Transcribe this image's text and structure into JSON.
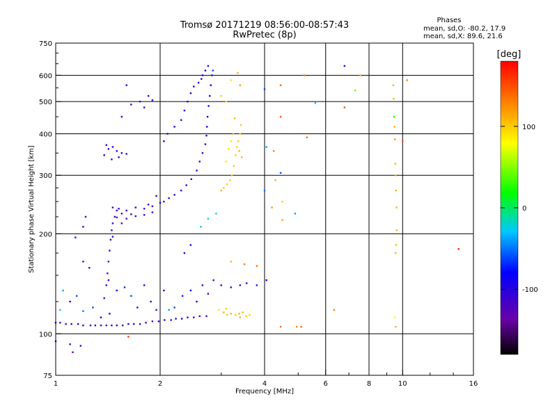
{
  "chart_data": {
    "type": "scatter",
    "title": "Tromsø 20171219 08:56:00-08:57:43",
    "subtitle": "RwPretec (8p)",
    "xlabel": "Frequency [MHz]",
    "ylabel": "Stationary phase Virtual Height [km]",
    "x_scale": "log",
    "y_scale": "log",
    "xlim": [
      1,
      16
    ],
    "ylim": [
      75,
      750
    ],
    "x_ticks": [
      1,
      2,
      4,
      6,
      8,
      10,
      16
    ],
    "x_tick_labels": [
      "1",
      "2",
      "4",
      "6",
      "8",
      "10",
      "16"
    ],
    "y_ticks": [
      75,
      100,
      200,
      300,
      400,
      500,
      600,
      750
    ],
    "y_tick_labels": [
      "75",
      "100",
      "200",
      "300",
      "400",
      "500",
      "600",
      "750"
    ],
    "grid": true,
    "legend": {
      "title": "Phases",
      "lines": [
        "mean, sd,O: -80.2, 17.9",
        "mean, sd,X:  89.6, 21.6"
      ],
      "position": "top-right"
    },
    "colorbar": {
      "label": "[deg]",
      "min": -180,
      "max": 180,
      "ticks": [
        100,
        0,
        -100
      ],
      "tick_labels": [
        "100",
        "0",
        "-100"
      ],
      "colors": [
        "#000000",
        "#6a00a8",
        "#0000ff",
        "#00c8ff",
        "#00ff00",
        "#ffff00",
        "#ff8000",
        "#ff0000"
      ]
    },
    "series": [
      {
        "points": [
          [
            1.0,
            108,
            -110
          ],
          [
            1.03,
            108,
            -110
          ],
          [
            1.07,
            107,
            -110
          ],
          [
            1.11,
            107,
            -110
          ],
          [
            1.16,
            107,
            -105
          ],
          [
            1.2,
            106,
            -110
          ],
          [
            1.26,
            106,
            -110
          ],
          [
            1.3,
            106,
            -105
          ],
          [
            1.35,
            106,
            -110
          ],
          [
            1.4,
            106,
            -110
          ],
          [
            1.45,
            106,
            -105
          ],
          [
            1.5,
            106,
            -110
          ],
          [
            1.56,
            106,
            -110
          ],
          [
            1.62,
            107,
            -105
          ],
          [
            1.68,
            107,
            -110
          ],
          [
            1.75,
            107,
            -110
          ],
          [
            1.82,
            108,
            -110
          ],
          [
            1.9,
            109,
            -110
          ],
          [
            1.98,
            109,
            -110
          ],
          [
            2.06,
            110,
            -100
          ],
          [
            2.15,
            110,
            -110
          ],
          [
            2.22,
            111,
            -110
          ],
          [
            2.31,
            111,
            -100
          ],
          [
            2.4,
            112,
            -110
          ],
          [
            2.5,
            112,
            -110
          ],
          [
            2.6,
            113,
            -110
          ],
          [
            2.72,
            113,
            -110
          ],
          [
            1.03,
            118,
            -30
          ],
          [
            1.05,
            135,
            -40
          ],
          [
            1.1,
            125,
            -80
          ],
          [
            1.15,
            130,
            -60
          ],
          [
            1.2,
            117,
            -50
          ],
          [
            1.28,
            120,
            -60
          ],
          [
            1.35,
            112,
            -90
          ],
          [
            1.43,
            115,
            -80
          ],
          [
            1.5,
            135,
            -90
          ],
          [
            1.58,
            138,
            -70
          ],
          [
            1.65,
            130,
            -60
          ],
          [
            1.72,
            120,
            -100
          ],
          [
            1.8,
            140,
            -100
          ],
          [
            1.88,
            125,
            -95
          ],
          [
            1.95,
            118,
            -110
          ],
          [
            2.05,
            135,
            -90
          ],
          [
            2.12,
            118,
            -40
          ],
          [
            2.2,
            120,
            -60
          ],
          [
            2.32,
            130,
            -70
          ],
          [
            2.45,
            135,
            -80
          ],
          [
            2.55,
            125,
            -90
          ],
          [
            2.65,
            140,
            -100
          ],
          [
            2.75,
            132,
            -90
          ],
          [
            2.85,
            145,
            -100
          ],
          [
            3.0,
            140,
            -110
          ],
          [
            3.2,
            138,
            -110
          ],
          [
            3.4,
            140,
            -110
          ],
          [
            3.55,
            142,
            -100
          ],
          [
            3.8,
            140,
            -110
          ],
          [
            4.05,
            145,
            -80
          ],
          [
            3.05,
            116,
            110
          ],
          [
            3.12,
            114,
            100
          ],
          [
            3.2,
            115,
            110
          ],
          [
            3.3,
            114,
            100
          ],
          [
            3.38,
            115,
            110
          ],
          [
            3.46,
            116,
            110
          ],
          [
            3.54,
            113,
            100
          ],
          [
            3.62,
            114,
            100
          ],
          [
            2.95,
            118,
            90
          ],
          [
            3.1,
            119,
            100
          ],
          [
            3.4,
            112,
            110
          ],
          [
            1.38,
            128,
            -110
          ],
          [
            1.4,
            140,
            -110
          ],
          [
            1.41,
            152,
            -110
          ],
          [
            1.42,
            165,
            -120
          ],
          [
            1.43,
            178,
            -110
          ],
          [
            1.44,
            192,
            -110
          ],
          [
            1.45,
            205,
            -110
          ],
          [
            1.46,
            215,
            -110
          ],
          [
            1.48,
            225,
            -110
          ],
          [
            1.5,
            235,
            -110
          ],
          [
            1.46,
            196,
            -110
          ],
          [
            1.42,
            145,
            -110
          ],
          [
            1.46,
            240,
            -110
          ],
          [
            1.52,
            238,
            -110
          ],
          [
            1.6,
            235,
            -110
          ],
          [
            1.7,
            240,
            -110
          ],
          [
            1.8,
            238,
            -110
          ],
          [
            1.9,
            242,
            -110
          ],
          [
            2.0,
            248,
            -90
          ],
          [
            1.5,
            224,
            -120
          ],
          [
            1.6,
            222,
            -120
          ],
          [
            1.7,
            226,
            -110
          ],
          [
            1.8,
            228,
            -110
          ],
          [
            1.9,
            232,
            -110
          ],
          [
            1.55,
            230,
            -110
          ],
          [
            1.65,
            229,
            -110
          ],
          [
            1.38,
            345,
            -100
          ],
          [
            1.42,
            360,
            -100
          ],
          [
            1.46,
            365,
            -100
          ],
          [
            1.5,
            355,
            -100
          ],
          [
            1.55,
            350,
            -100
          ],
          [
            1.6,
            348,
            -100
          ],
          [
            1.45,
            335,
            -100
          ],
          [
            1.52,
            340,
            -100
          ],
          [
            1.4,
            370,
            -100
          ],
          [
            2.05,
            250,
            -110
          ],
          [
            2.12,
            256,
            -110
          ],
          [
            2.2,
            262,
            -110
          ],
          [
            2.3,
            270,
            -100
          ],
          [
            2.38,
            280,
            -100
          ],
          [
            2.46,
            292,
            -100
          ],
          [
            2.55,
            310,
            -100
          ],
          [
            2.6,
            330,
            -100
          ],
          [
            2.65,
            350,
            -100
          ],
          [
            2.7,
            372,
            -100
          ],
          [
            2.72,
            395,
            -100
          ],
          [
            2.73,
            420,
            -90
          ],
          [
            2.74,
            450,
            -90
          ],
          [
            2.76,
            485,
            -90
          ],
          [
            2.78,
            520,
            -90
          ],
          [
            2.8,
            560,
            -90
          ],
          [
            2.82,
            600,
            -90
          ],
          [
            2.75,
            640,
            -90
          ],
          [
            2.7,
            620,
            -80
          ],
          [
            2.65,
            600,
            -90
          ],
          [
            2.84,
            620,
            -60
          ],
          [
            2.1,
            400,
            -90
          ],
          [
            2.2,
            420,
            -100
          ],
          [
            2.3,
            440,
            -100
          ],
          [
            2.35,
            470,
            -90
          ],
          [
            2.4,
            500,
            -90
          ],
          [
            2.45,
            530,
            -90
          ],
          [
            2.5,
            555,
            -90
          ],
          [
            2.58,
            570,
            -90
          ],
          [
            2.63,
            585,
            -100
          ],
          [
            2.05,
            380,
            -90
          ],
          [
            1.65,
            490,
            -110
          ],
          [
            1.75,
            500,
            -110
          ],
          [
            1.8,
            480,
            -110
          ],
          [
            1.85,
            520,
            -110
          ],
          [
            1.55,
            450,
            -110
          ],
          [
            1.6,
            560,
            -110
          ],
          [
            1.9,
            505,
            -110
          ],
          [
            3.0,
            270,
            110
          ],
          [
            3.05,
            275,
            100
          ],
          [
            3.12,
            282,
            100
          ],
          [
            3.18,
            290,
            100
          ],
          [
            3.22,
            300,
            100
          ],
          [
            3.26,
            320,
            100
          ],
          [
            3.3,
            345,
            100
          ],
          [
            3.33,
            365,
            100
          ],
          [
            3.36,
            380,
            100
          ],
          [
            3.4,
            400,
            100
          ],
          [
            3.42,
            425,
            100
          ],
          [
            3.38,
            355,
            110
          ],
          [
            3.44,
            340,
            110
          ],
          [
            3.1,
            330,
            90
          ],
          [
            3.15,
            360,
            90
          ],
          [
            3.2,
            380,
            90
          ],
          [
            3.25,
            400,
            110
          ],
          [
            3.28,
            445,
            110
          ],
          [
            3.35,
            610,
            110
          ],
          [
            3.4,
            560,
            120
          ],
          [
            3.2,
            580,
            90
          ],
          [
            3.1,
            500,
            100
          ],
          [
            3.0,
            520,
            100
          ],
          [
            2.9,
            230,
            -20
          ],
          [
            2.75,
            222,
            -20
          ],
          [
            2.62,
            210,
            -30
          ],
          [
            2.45,
            185,
            -100
          ],
          [
            2.35,
            175,
            -100
          ],
          [
            3.2,
            165,
            110
          ],
          [
            3.5,
            162,
            130
          ],
          [
            3.8,
            160,
            140
          ],
          [
            4.45,
            560,
            140
          ],
          [
            4.45,
            450,
            150
          ],
          [
            4.45,
            305,
            -60
          ],
          [
            4.45,
            105,
            140
          ],
          [
            4.3,
            290,
            110
          ],
          [
            4.2,
            240,
            120
          ],
          [
            4.0,
            270,
            -50
          ],
          [
            4.05,
            365,
            -40
          ],
          [
            4.25,
            355,
            130
          ],
          [
            4.5,
            220,
            120
          ],
          [
            4.5,
            250,
            100
          ],
          [
            4.9,
            230,
            -40
          ],
          [
            4.95,
            105,
            130
          ],
          [
            5.1,
            105,
            140
          ],
          [
            5.2,
            600,
            130
          ],
          [
            5.3,
            390,
            140
          ],
          [
            4.0,
            545,
            -60
          ],
          [
            5.6,
            495,
            -30
          ],
          [
            6.35,
            118,
            130
          ],
          [
            6.8,
            480,
            150
          ],
          [
            6.8,
            640,
            -90
          ],
          [
            7.3,
            540,
            40
          ],
          [
            7.55,
            600,
            110
          ],
          [
            9.4,
            560,
            110
          ],
          [
            9.42,
            510,
            110
          ],
          [
            9.45,
            450,
            20
          ],
          [
            9.48,
            420,
            110
          ],
          [
            9.5,
            385,
            120
          ],
          [
            9.52,
            325,
            110
          ],
          [
            9.55,
            300,
            110
          ],
          [
            9.57,
            270,
            110
          ],
          [
            9.6,
            240,
            110
          ],
          [
            9.62,
            205,
            110
          ],
          [
            9.58,
            185,
            110
          ],
          [
            9.55,
            175,
            110
          ],
          [
            9.5,
            112,
            80
          ],
          [
            9.55,
            105,
            110
          ],
          [
            10.0,
            380,
            150
          ],
          [
            10.3,
            580,
            130
          ],
          [
            14.5,
            180,
            170
          ],
          [
            1.0,
            95,
            -110
          ],
          [
            1.1,
            93,
            -110
          ],
          [
            1.12,
            88,
            -130
          ],
          [
            1.18,
            92,
            -110
          ],
          [
            1.62,
            98,
            160
          ],
          [
            1.25,
            158,
            -110
          ],
          [
            1.2,
            165,
            -120
          ],
          [
            1.14,
            195,
            -110
          ],
          [
            1.2,
            210,
            -110
          ],
          [
            1.55,
            215,
            -110
          ],
          [
            1.22,
            225,
            -110
          ],
          [
            1.85,
            245,
            -110
          ],
          [
            1.95,
            260,
            -100
          ]
        ]
      }
    ]
  }
}
